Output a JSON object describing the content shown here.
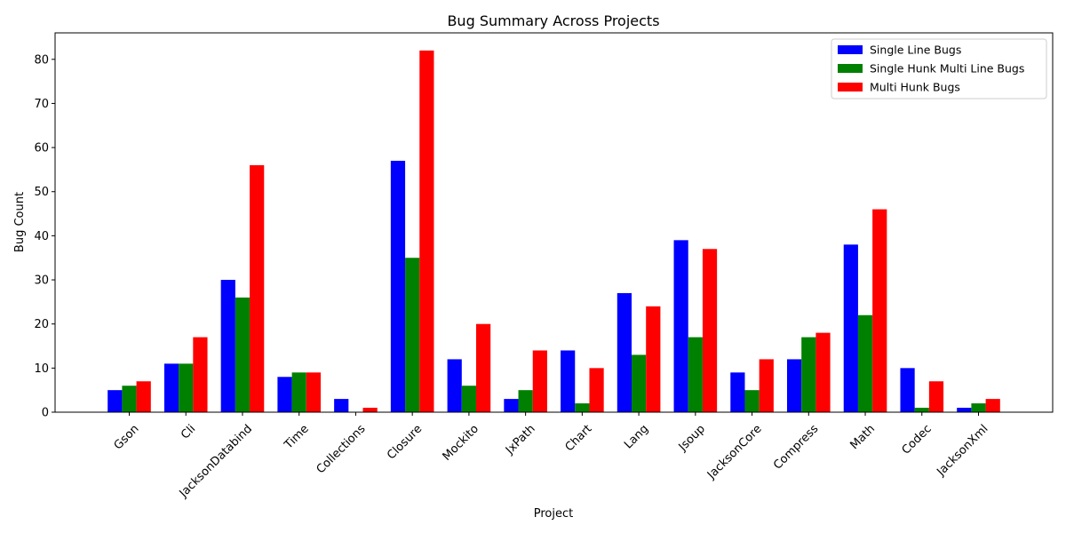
{
  "chart_data": {
    "type": "bar",
    "title": "Bug Summary Across Projects",
    "xlabel": "Project",
    "ylabel": "Bug Count",
    "ylim": [
      0,
      86
    ],
    "yticks": [
      0,
      10,
      20,
      30,
      40,
      50,
      60,
      70,
      80
    ],
    "grid": false,
    "legend_position": "top-right",
    "categories": [
      "Gson",
      "Cli",
      "JacksonDatabind",
      "Time",
      "Collections",
      "Closure",
      "Mockito",
      "JxPath",
      "Chart",
      "Lang",
      "Jsoup",
      "JacksonCore",
      "Compress",
      "Math",
      "Codec",
      "JacksonXml"
    ],
    "series": [
      {
        "name": "Single Line Bugs",
        "color": "#0000ff",
        "values": [
          5,
          11,
          30,
          8,
          3,
          57,
          12,
          3,
          14,
          27,
          39,
          9,
          12,
          38,
          10,
          1
        ]
      },
      {
        "name": "Single Hunk Multi Line Bugs",
        "color": "#008000",
        "values": [
          6,
          11,
          26,
          9,
          0,
          35,
          6,
          5,
          2,
          13,
          17,
          5,
          17,
          22,
          1,
          2
        ]
      },
      {
        "name": "Multi Hunk Bugs",
        "color": "#ff0000",
        "values": [
          7,
          17,
          56,
          9,
          1,
          82,
          20,
          14,
          10,
          24,
          37,
          12,
          18,
          46,
          7,
          3
        ]
      }
    ]
  }
}
